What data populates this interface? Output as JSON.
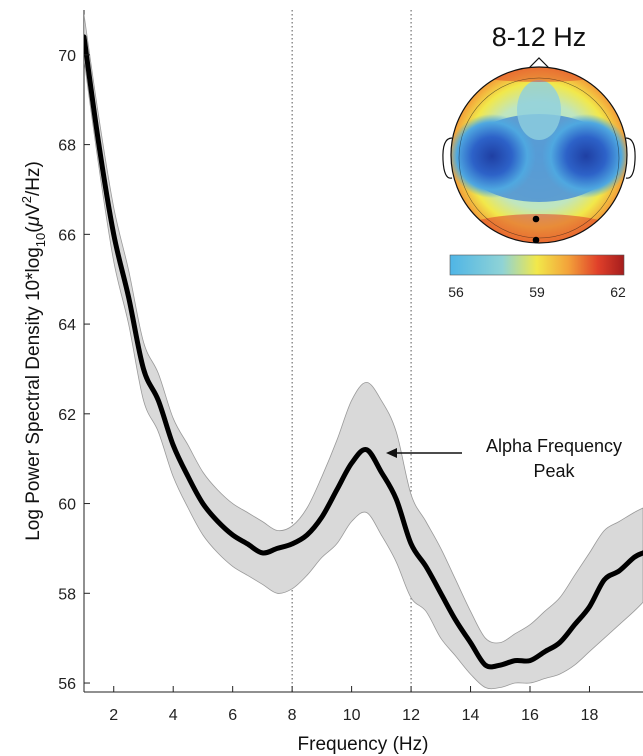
{
  "chart_data": {
    "type": "line",
    "title": "",
    "xlabel": "Frequency (Hz)",
    "ylabel_parts": {
      "main": "Log Power Spectral Density 10*log",
      "sub": "10",
      "open": "(",
      "mu": "μ",
      "unit": "V",
      "sup": "2",
      "close": "/Hz)"
    },
    "xlim": [
      1,
      19.8
    ],
    "ylim": [
      55.8,
      71
    ],
    "xticks": [
      2,
      4,
      6,
      8,
      10,
      12,
      14,
      16,
      18
    ],
    "yticks": [
      56,
      58,
      60,
      62,
      64,
      66,
      68,
      70
    ],
    "vlines": [
      8,
      12
    ],
    "grid": false,
    "series": [
      {
        "x": [
          1,
          1.5,
          2,
          2.5,
          3,
          3.5,
          4,
          4.5,
          5,
          5.5,
          6,
          6.5,
          7,
          7.5,
          8,
          8.5,
          9,
          9.5,
          10,
          10.5,
          11,
          11.5,
          12,
          12.5,
          13,
          13.5,
          14,
          14.5,
          15,
          15.5,
          16,
          16.5,
          17,
          17.5,
          18,
          18.5,
          19,
          19.5,
          19.8
        ],
        "values": [
          70.4,
          68.0,
          66.0,
          64.6,
          63.0,
          62.3,
          61.3,
          60.6,
          60.0,
          59.6,
          59.3,
          59.1,
          58.9,
          59.0,
          59.1,
          59.3,
          59.7,
          60.3,
          60.9,
          61.2,
          60.7,
          60.1,
          59.1,
          58.6,
          58.0,
          57.4,
          56.9,
          56.4,
          56.4,
          56.5,
          56.5,
          56.7,
          56.9,
          57.3,
          57.7,
          58.3,
          58.5,
          58.8,
          58.9
        ],
        "upper": [
          70.9,
          68.6,
          66.6,
          65.2,
          63.6,
          62.9,
          61.9,
          61.3,
          60.7,
          60.3,
          60.0,
          59.8,
          59.6,
          59.4,
          59.5,
          59.9,
          60.6,
          61.4,
          62.3,
          62.7,
          62.3,
          61.6,
          60.2,
          59.6,
          59.0,
          58.3,
          57.6,
          57.0,
          56.9,
          57.1,
          57.3,
          57.6,
          57.9,
          58.4,
          58.9,
          59.4,
          59.6,
          59.8,
          59.9
        ],
        "lower": [
          69.9,
          67.5,
          65.4,
          64.0,
          62.3,
          61.6,
          60.6,
          59.9,
          59.3,
          58.9,
          58.6,
          58.4,
          58.2,
          58.0,
          58.1,
          58.4,
          58.8,
          59.1,
          59.6,
          59.8,
          59.3,
          58.7,
          57.9,
          57.6,
          57.0,
          56.6,
          56.2,
          55.9,
          55.9,
          56.0,
          56.0,
          56.1,
          56.2,
          56.4,
          56.7,
          57.0,
          57.3,
          57.6,
          57.8
        ]
      }
    ],
    "annotation": {
      "line1": "Alpha Frequency",
      "line2": "Peak",
      "x": 10.5,
      "y": 61.2
    },
    "inset": {
      "title": "8-12 Hz",
      "type": "topographic-map",
      "colorbar": {
        "ticks": [
          "56",
          "59",
          "62"
        ],
        "range": [
          56,
          62
        ],
        "colors": [
          "#4fb5e6",
          "#8fd3d6",
          "#f2e84a",
          "#f3a23a",
          "#e0402a",
          "#a51d1d"
        ]
      }
    }
  }
}
